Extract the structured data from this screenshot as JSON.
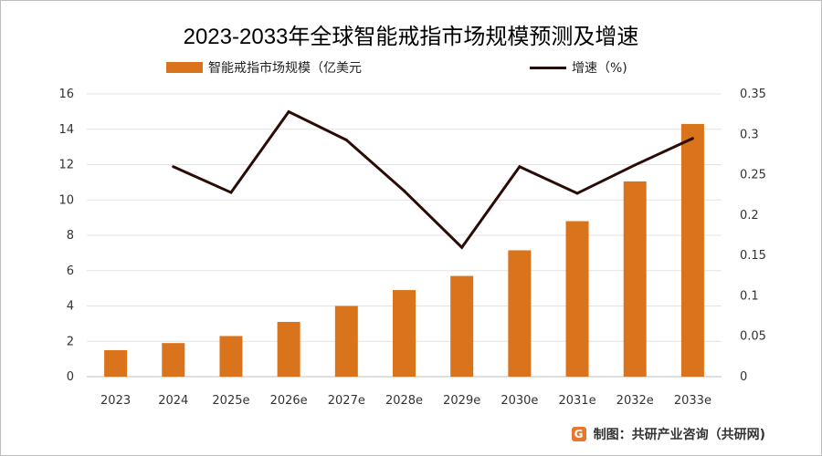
{
  "chart_data": {
    "type": "bar",
    "title": "2023-2033年全球智能戒指市场规模预测及增速",
    "categories": [
      "2023",
      "2024",
      "2025e",
      "2026e",
      "2027e",
      "2028e",
      "2029e",
      "2030e",
      "2031e",
      "2032e",
      "2033e"
    ],
    "series": [
      {
        "name": "智能戒指市场规模（亿美元",
        "type": "bar",
        "axis": "left",
        "color": "#d9741c",
        "values": [
          1.5,
          1.9,
          2.3,
          3.1,
          4.0,
          4.9,
          5.7,
          7.15,
          8.8,
          11.05,
          14.3
        ]
      },
      {
        "name": "增速（%)",
        "type": "line",
        "axis": "right",
        "color": "#2b0b06",
        "values": [
          null,
          0.26,
          0.228,
          0.328,
          0.293,
          0.23,
          0.16,
          0.26,
          0.227,
          0.262,
          0.295
        ]
      }
    ],
    "y_left": {
      "min": 0,
      "max": 16,
      "ticks": [
        "0",
        "2",
        "4",
        "6",
        "8",
        "10",
        "12",
        "14",
        "16"
      ]
    },
    "y_right": {
      "min": 0,
      "max": 0.35,
      "ticks": [
        "0",
        "0.05",
        "0.1",
        "0.15",
        "0.2",
        "0.25",
        "0.3",
        "0.35"
      ]
    },
    "grid": true,
    "legend_position": "top"
  },
  "source": {
    "logo_text": "G",
    "text": "制图：共研产业咨询（共研网)"
  }
}
